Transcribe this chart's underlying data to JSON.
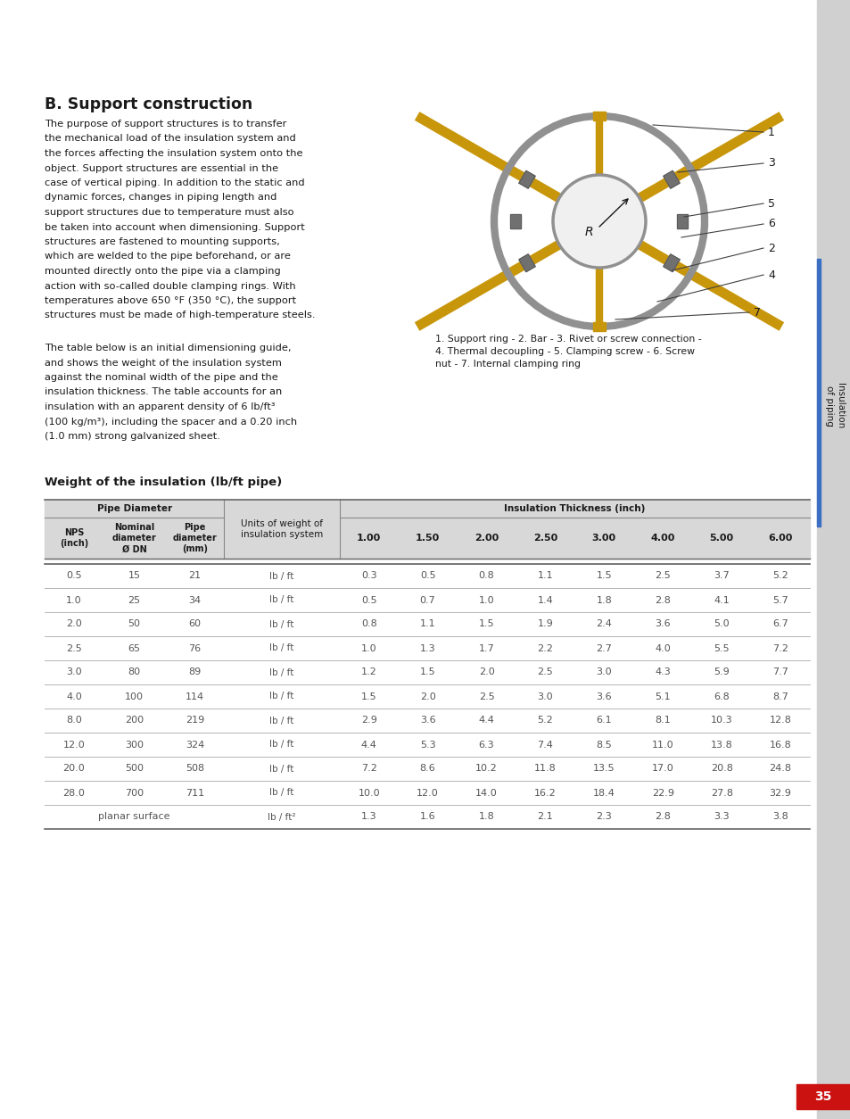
{
  "page_bg": "#ffffff",
  "sidebar_color": "#d0d0d0",
  "sidebar_text": "Insulation\nof piping",
  "sidebar_blue_accent": "#3a6fc4",
  "page_number": "35",
  "page_number_bg": "#cc1111",
  "title": "B. Support construction",
  "body_text_1": "The purpose of support structures is to transfer\nthe mechanical load of the insulation system and\nthe forces affecting the insulation system onto the\nobject. Support structures are essential in the\ncase of vertical piping. In addition to the static and\ndynamic forces, changes in piping length and\nsupport structures due to temperature must also\nbe taken into account when dimensioning. Support\nstructures are fastened to mounting supports,\nwhich are welded to the pipe beforehand, or are\nmounted directly onto the pipe via a clamping\naction with so-called double clamping rings. With\ntemperatures above 650 °F (350 °C), the support\nstructures must be made of high-temperature steels.",
  "body_text_2": "The table below is an initial dimensioning guide,\nand shows the weight of the insulation system\nagainst the nominal width of the pipe and the\ninsulation thickness. The table accounts for an\ninsulation with an apparent density of 6 lb/ft³\n(100 kg/m³), including the spacer and a 0.20 inch\n(1.0 mm) strong galvanized sheet.",
  "caption": "1. Support ring - 2. Bar - 3. Rivet or screw connection -\n4. Thermal decoupling - 5. Clamping screw - 6. Screw\nnut - 7. Internal clamping ring",
  "table_title": "Weight of the insulation (lb/ft pipe)",
  "col_header_1": [
    "NPS\n(inch)",
    "Nominal\ndiameter\nØ DN",
    "Pipe\ndiameter\n(mm)"
  ],
  "col_header_2": "Units of weight of\ninsulation system",
  "col_header_3": [
    "1.00",
    "1.50",
    "2.00",
    "2.50",
    "3.00",
    "4.00",
    "5.00",
    "6.00"
  ],
  "col_span_1": "Pipe Diameter",
  "col_span_3": "Insulation Thickness (inch)",
  "table_rows": [
    [
      "0.5",
      "15",
      "21",
      "lb / ft",
      "0.3",
      "0.5",
      "0.8",
      "1.1",
      "1.5",
      "2.5",
      "3.7",
      "5.2"
    ],
    [
      "1.0",
      "25",
      "34",
      "lb / ft",
      "0.5",
      "0.7",
      "1.0",
      "1.4",
      "1.8",
      "2.8",
      "4.1",
      "5.7"
    ],
    [
      "2.0",
      "50",
      "60",
      "lb / ft",
      "0.8",
      "1.1",
      "1.5",
      "1.9",
      "2.4",
      "3.6",
      "5.0",
      "6.7"
    ],
    [
      "2.5",
      "65",
      "76",
      "lb / ft",
      "1.0",
      "1.3",
      "1.7",
      "2.2",
      "2.7",
      "4.0",
      "5.5",
      "7.2"
    ],
    [
      "3.0",
      "80",
      "89",
      "lb / ft",
      "1.2",
      "1.5",
      "2.0",
      "2.5",
      "3.0",
      "4.3",
      "5.9",
      "7.7"
    ],
    [
      "4.0",
      "100",
      "114",
      "lb / ft",
      "1.5",
      "2.0",
      "2.5",
      "3.0",
      "3.6",
      "5.1",
      "6.8",
      "8.7"
    ],
    [
      "8.0",
      "200",
      "219",
      "lb / ft",
      "2.9",
      "3.6",
      "4.4",
      "5.2",
      "6.1",
      "8.1",
      "10.3",
      "12.8"
    ],
    [
      "12.0",
      "300",
      "324",
      "lb / ft",
      "4.4",
      "5.3",
      "6.3",
      "7.4",
      "8.5",
      "11.0",
      "13.8",
      "16.8"
    ],
    [
      "20.0",
      "500",
      "508",
      "lb / ft",
      "7.2",
      "8.6",
      "10.2",
      "11.8",
      "13.5",
      "17.0",
      "20.8",
      "24.8"
    ],
    [
      "28.0",
      "700",
      "711",
      "lb / ft",
      "10.0",
      "12.0",
      "14.0",
      "16.2",
      "18.4",
      "22.9",
      "27.8",
      "32.9"
    ],
    [
      "planar surface",
      "",
      "",
      "lb / ft²",
      "1.3",
      "1.6",
      "1.8",
      "2.1",
      "2.3",
      "2.8",
      "3.3",
      "3.8"
    ]
  ],
  "header_bg": "#d8d8d8",
  "row_bg": "#ffffff",
  "text_color": "#1a1a1a",
  "table_text_color": "#555555"
}
